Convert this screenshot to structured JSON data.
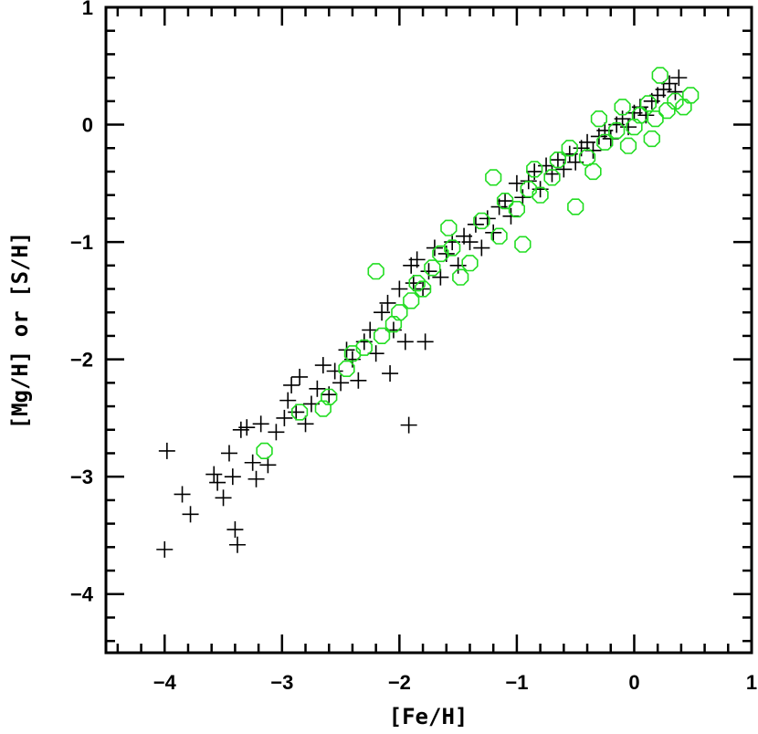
{
  "chart_data": {
    "type": "scatter",
    "title": "",
    "xlabel": "[Fe/H]",
    "ylabel": "[Mg/H] or [S/H]",
    "xlim": [
      -4.5,
      1
    ],
    "ylim": [
      -4.5,
      1
    ],
    "xticks": [
      -4,
      -3,
      -2,
      -1,
      0,
      1
    ],
    "yticks": [
      -4,
      -3,
      -2,
      -1,
      0,
      1
    ],
    "xtick_labels": [
      "−4",
      "−3",
      "−2",
      "−1",
      "0",
      "1"
    ],
    "ytick_labels": [
      "−4",
      "−3",
      "−2",
      "−1",
      "0",
      "1"
    ],
    "grid": false,
    "series": [
      {
        "marker": "plus",
        "color": "#000000",
        "points": [
          [
            -4.0,
            -3.62
          ],
          [
            -3.98,
            -2.78
          ],
          [
            -3.85,
            -3.15
          ],
          [
            -3.78,
            -3.32
          ],
          [
            -3.58,
            -2.98
          ],
          [
            -3.55,
            -3.05
          ],
          [
            -3.5,
            -3.18
          ],
          [
            -3.45,
            -2.8
          ],
          [
            -3.42,
            -3.0
          ],
          [
            -3.4,
            -3.45
          ],
          [
            -3.38,
            -3.58
          ],
          [
            -3.35,
            -2.6
          ],
          [
            -3.3,
            -2.58
          ],
          [
            -3.25,
            -2.88
          ],
          [
            -3.22,
            -3.02
          ],
          [
            -3.18,
            -2.55
          ],
          [
            -3.12,
            -2.9
          ],
          [
            -3.05,
            -2.62
          ],
          [
            -2.98,
            -2.5
          ],
          [
            -2.95,
            -2.35
          ],
          [
            -2.92,
            -2.22
          ],
          [
            -2.88,
            -2.45
          ],
          [
            -2.85,
            -2.15
          ],
          [
            -2.8,
            -2.55
          ],
          [
            -2.75,
            -2.38
          ],
          [
            -2.7,
            -2.25
          ],
          [
            -2.65,
            -2.05
          ],
          [
            -2.6,
            -2.3
          ],
          [
            -2.55,
            -2.1
          ],
          [
            -2.5,
            -2.2
          ],
          [
            -2.45,
            -1.92
          ],
          [
            -2.4,
            -2.0
          ],
          [
            -2.35,
            -2.18
          ],
          [
            -2.3,
            -1.85
          ],
          [
            -2.25,
            -1.75
          ],
          [
            -2.2,
            -1.95
          ],
          [
            -2.15,
            -1.6
          ],
          [
            -2.1,
            -1.52
          ],
          [
            -2.08,
            -2.12
          ],
          [
            -2.05,
            -1.75
          ],
          [
            -2.0,
            -1.4
          ],
          [
            -1.95,
            -1.85
          ],
          [
            -1.92,
            -2.56
          ],
          [
            -1.9,
            -1.2
          ],
          [
            -1.88,
            -1.35
          ],
          [
            -1.85,
            -1.15
          ],
          [
            -1.8,
            -1.4
          ],
          [
            -1.78,
            -1.85
          ],
          [
            -1.75,
            -1.25
          ],
          [
            -1.7,
            -1.05
          ],
          [
            -1.65,
            -1.3
          ],
          [
            -1.6,
            -1.1
          ],
          [
            -1.55,
            -1.0
          ],
          [
            -1.5,
            -1.2
          ],
          [
            -1.45,
            -0.95
          ],
          [
            -1.4,
            -1.0
          ],
          [
            -1.35,
            -0.85
          ],
          [
            -1.3,
            -1.05
          ],
          [
            -1.25,
            -0.8
          ],
          [
            -1.2,
            -0.92
          ],
          [
            -1.15,
            -0.7
          ],
          [
            -1.1,
            -0.65
          ],
          [
            -1.05,
            -0.78
          ],
          [
            -1.0,
            -0.5
          ],
          [
            -0.95,
            -0.62
          ],
          [
            -0.9,
            -0.48
          ],
          [
            -0.85,
            -0.4
          ],
          [
            -0.8,
            -0.55
          ],
          [
            -0.75,
            -0.35
          ],
          [
            -0.7,
            -0.42
          ],
          [
            -0.65,
            -0.3
          ],
          [
            -0.6,
            -0.38
          ],
          [
            -0.55,
            -0.25
          ],
          [
            -0.5,
            -0.32
          ],
          [
            -0.45,
            -0.2
          ],
          [
            -0.4,
            -0.15
          ],
          [
            -0.35,
            -0.22
          ],
          [
            -0.3,
            -0.1
          ],
          [
            -0.25,
            -0.05
          ],
          [
            -0.2,
            -0.12
          ],
          [
            -0.15,
            0.0
          ],
          [
            -0.1,
            0.05
          ],
          [
            -0.05,
            -0.02
          ],
          [
            0.0,
            0.1
          ],
          [
            0.05,
            0.15
          ],
          [
            0.1,
            0.08
          ],
          [
            0.15,
            0.2
          ],
          [
            0.2,
            0.25
          ],
          [
            0.25,
            0.3
          ],
          [
            0.3,
            0.35
          ],
          [
            0.35,
            0.28
          ],
          [
            0.38,
            0.4
          ]
        ]
      },
      {
        "marker": "circle",
        "color": "#22dd22",
        "points": [
          [
            -3.15,
            -2.78
          ],
          [
            -2.85,
            -2.45
          ],
          [
            -2.65,
            -2.42
          ],
          [
            -2.6,
            -2.32
          ],
          [
            -2.45,
            -2.08
          ],
          [
            -2.4,
            -1.95
          ],
          [
            -2.3,
            -1.9
          ],
          [
            -2.2,
            -1.25
          ],
          [
            -2.15,
            -1.8
          ],
          [
            -2.05,
            -1.7
          ],
          [
            -2.0,
            -1.6
          ],
          [
            -1.9,
            -1.5
          ],
          [
            -1.85,
            -1.35
          ],
          [
            -1.8,
            -1.4
          ],
          [
            -1.72,
            -1.22
          ],
          [
            -1.65,
            -1.1
          ],
          [
            -1.58,
            -0.88
          ],
          [
            -1.55,
            -1.05
          ],
          [
            -1.48,
            -1.3
          ],
          [
            -1.4,
            -1.18
          ],
          [
            -1.3,
            -0.82
          ],
          [
            -1.2,
            -0.45
          ],
          [
            -1.15,
            -0.95
          ],
          [
            -1.1,
            -0.65
          ],
          [
            -1.0,
            -0.72
          ],
          [
            -0.95,
            -1.02
          ],
          [
            -0.9,
            -0.55
          ],
          [
            -0.85,
            -0.38
          ],
          [
            -0.8,
            -0.6
          ],
          [
            -0.7,
            -0.45
          ],
          [
            -0.65,
            -0.3
          ],
          [
            -0.55,
            -0.2
          ],
          [
            -0.5,
            -0.7
          ],
          [
            -0.4,
            -0.28
          ],
          [
            -0.3,
            0.05
          ],
          [
            -0.25,
            -0.15
          ],
          [
            -0.15,
            -0.05
          ],
          [
            -0.1,
            0.15
          ],
          [
            0.0,
            -0.02
          ],
          [
            0.05,
            0.08
          ],
          [
            0.12,
            0.18
          ],
          [
            0.18,
            0.05
          ],
          [
            0.22,
            0.42
          ],
          [
            0.28,
            0.12
          ],
          [
            0.35,
            0.2
          ],
          [
            0.42,
            0.15
          ],
          [
            0.48,
            0.25
          ],
          [
            -0.05,
            -0.18
          ],
          [
            0.15,
            -0.12
          ],
          [
            -0.35,
            -0.4
          ]
        ]
      }
    ]
  }
}
